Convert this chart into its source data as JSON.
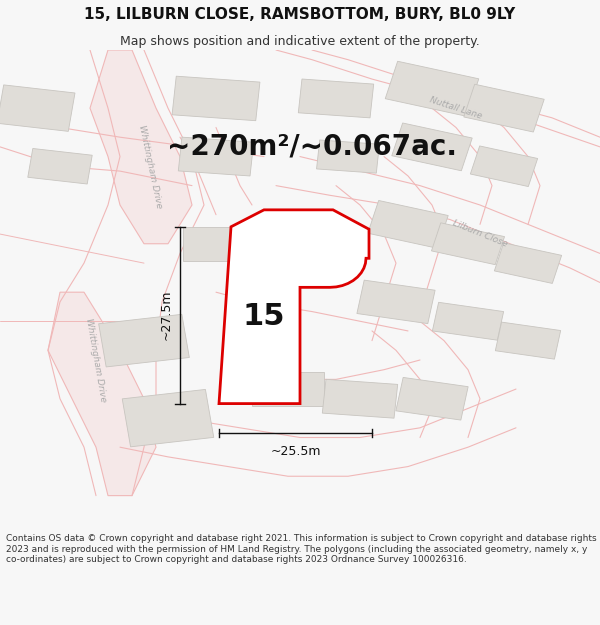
{
  "title_line1": "15, LILBURN CLOSE, RAMSBOTTOM, BURY, BL0 9LY",
  "title_line2": "Map shows position and indicative extent of the property.",
  "area_label": "~270m²/~0.067ac.",
  "number_label": "15",
  "dim_vertical": "~27.5m",
  "dim_horizontal": "~25.5m",
  "footer_text": "Contains OS data © Crown copyright and database right 2021. This information is subject to Crown copyright and database rights 2023 and is reproduced with the permission of HM Land Registry. The polygons (including the associated geometry, namely x, y co-ordinates) are subject to Crown copyright and database rights 2023 Ordnance Survey 100026316.",
  "bg_color": "#f7f7f7",
  "map_bg": "#f8f8f6",
  "road_outline_color": "#f0b8b8",
  "road_fill_color": "#f5e8e8",
  "building_fill": "#e0ddd8",
  "building_edge": "#c8c5c0",
  "property_color": "#dd0000",
  "property_fill": "#ffffff",
  "dim_line_color": "#111111",
  "road_label_color": "#aaaaaa",
  "title_fontsize": 11,
  "subtitle_fontsize": 9,
  "area_fontsize": 20,
  "number_fontsize": 22,
  "dim_fontsize": 9,
  "footer_fontsize": 6.5
}
